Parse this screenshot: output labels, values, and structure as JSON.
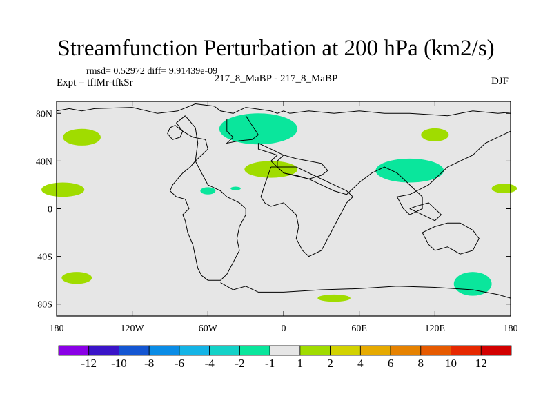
{
  "figure": {
    "title": "Streamfunction Perturbation at 200 hPa (km2/s)",
    "stats": "rmsd= 0.52972  diff= 9.91439e-09",
    "left_label": "Expt = tflMr-tfkSr",
    "center_label": "217_8_MaBP - 217_8_MaBP",
    "right_label": "DJF"
  },
  "chart_data": {
    "type": "heatmap",
    "title": "Streamfunction Perturbation at 200 hPa (km2/s)",
    "projection": "cylindrical equidistant",
    "xlim": [
      -180,
      180
    ],
    "ylim": [
      -90,
      90
    ],
    "x_ticks": [
      {
        "value": -180,
        "label": "180"
      },
      {
        "value": -120,
        "label": "120W"
      },
      {
        "value": -60,
        "label": "60W"
      },
      {
        "value": 0,
        "label": "0"
      },
      {
        "value": 60,
        "label": "60E"
      },
      {
        "value": 120,
        "label": "120E"
      },
      {
        "value": 180,
        "label": "180"
      }
    ],
    "y_ticks": [
      {
        "value": 80,
        "label": "80N"
      },
      {
        "value": 40,
        "label": "40N"
      },
      {
        "value": 0,
        "label": "0"
      },
      {
        "value": -40,
        "label": "40S"
      },
      {
        "value": -80,
        "label": "80S"
      }
    ],
    "background_color": "#e6e6e6",
    "colorbar": {
      "labels": [
        "-12",
        "-10",
        "-8",
        "-6",
        "-4",
        "-2",
        "-1",
        "1",
        "2",
        "4",
        "6",
        "8",
        "10",
        "12"
      ],
      "colors": [
        "#8a00e6",
        "#3a14c8",
        "#1456d2",
        "#0a8ce6",
        "#14b4e6",
        "#14d2c8",
        "#0ae69c",
        "#e6e6e6",
        "#a0dc00",
        "#d2d200",
        "#e6aa00",
        "#e68200",
        "#e65a00",
        "#e62800",
        "#d20000"
      ]
    },
    "anomalies": [
      {
        "lon": -20,
        "lat": 67,
        "rlon": 31,
        "rlat": 13,
        "class": "-1..-2"
      },
      {
        "lon": 100,
        "lat": 32,
        "rlon": 27,
        "rlat": 10,
        "class": "-1..-2"
      },
      {
        "lon": 150,
        "lat": -63,
        "rlon": 15,
        "rlat": 10,
        "class": "-1..-2"
      },
      {
        "lon": -60,
        "lat": 15,
        "rlon": 6,
        "rlat": 3,
        "class": "-1..-2"
      },
      {
        "lon": -38,
        "lat": 17,
        "rlon": 4,
        "rlat": 1.5,
        "class": "-1..-2"
      },
      {
        "lon": -160,
        "lat": 60,
        "rlon": 15,
        "rlat": 7,
        "class": "1..2"
      },
      {
        "lon": 120,
        "lat": 62,
        "rlon": 11,
        "rlat": 5.5,
        "class": "1..2"
      },
      {
        "lon": -10,
        "lat": 33,
        "rlon": 21,
        "rlat": 7,
        "class": "1..2"
      },
      {
        "lon": -175,
        "lat": 16,
        "rlon": 17,
        "rlat": 6,
        "class": "1..2"
      },
      {
        "lon": 175,
        "lat": 17,
        "rlon": 10,
        "rlat": 4,
        "class": "1..2"
      },
      {
        "lon": -164,
        "lat": -58,
        "rlon": 12,
        "rlat": 5,
        "class": "1..2"
      },
      {
        "lon": 40,
        "lat": -75,
        "rlon": 13,
        "rlat": 3,
        "class": "1..2"
      }
    ],
    "coastlines": [
      [
        [
          -180,
          82
        ],
        [
          -170,
          84
        ],
        [
          -160,
          82
        ],
        [
          -150,
          84
        ],
        [
          -120,
          85
        ],
        [
          -100,
          80
        ],
        [
          -84,
          82
        ],
        [
          -70,
          88
        ],
        [
          -55,
          86
        ],
        [
          -50,
          82
        ],
        [
          -40,
          80
        ],
        [
          -30,
          85
        ],
        [
          -10,
          82
        ],
        [
          -5,
          80
        ],
        [
          0,
          82
        ],
        [
          5,
          80
        ],
        [
          20,
          82
        ],
        [
          40,
          80
        ],
        [
          60,
          82
        ],
        [
          80,
          80
        ],
        [
          100,
          80
        ],
        [
          130,
          78
        ],
        [
          150,
          82
        ],
        [
          170,
          80
        ],
        [
          180,
          81
        ]
      ],
      [
        [
          -90,
          68
        ],
        [
          -92,
          63
        ],
        [
          -88,
          58
        ],
        [
          -82,
          60
        ],
        [
          -80,
          65
        ],
        [
          -86,
          70
        ],
        [
          -90,
          68
        ]
      ],
      [
        [
          -78,
          78
        ],
        [
          -85,
          72
        ],
        [
          -80,
          65
        ],
        [
          -72,
          60
        ],
        [
          -62,
          58
        ],
        [
          -60,
          50
        ],
        [
          -65,
          45
        ],
        [
          -70,
          40
        ],
        [
          -74,
          35
        ],
        [
          -80,
          30
        ],
        [
          -84,
          25
        ],
        [
          -88,
          20
        ],
        [
          -90,
          15
        ],
        [
          -85,
          10
        ],
        [
          -78,
          8
        ],
        [
          -75,
          0
        ],
        [
          -80,
          -5
        ],
        [
          -78,
          -10
        ],
        [
          -76,
          -20
        ],
        [
          -72,
          -30
        ],
        [
          -70,
          -40
        ],
        [
          -68,
          -50
        ],
        [
          -65,
          -56
        ],
        [
          -60,
          -60
        ],
        [
          -50,
          -60
        ],
        [
          -45,
          -55
        ],
        [
          -40,
          -45
        ],
        [
          -35,
          -35
        ],
        [
          -37,
          -25
        ],
        [
          -35,
          -15
        ],
        [
          -30,
          -5
        ],
        [
          -30,
          0
        ],
        [
          -35,
          5
        ],
        [
          -45,
          10
        ],
        [
          -50,
          15
        ],
        [
          -60,
          20
        ],
        [
          -65,
          30
        ],
        [
          -70,
          40
        ],
        [
          -68,
          55
        ],
        [
          -70,
          68
        ],
        [
          -78,
          78
        ]
      ],
      [
        [
          -45,
          75
        ],
        [
          -45,
          65
        ],
        [
          -40,
          60
        ],
        [
          -45,
          55
        ],
        [
          -35,
          57
        ],
        [
          -25,
          58
        ],
        [
          -20,
          62
        ],
        [
          -25,
          70
        ],
        [
          -30,
          78
        ]
      ],
      [
        [
          -20,
          55
        ],
        [
          -10,
          50
        ],
        [
          0,
          45
        ],
        [
          10,
          42
        ],
        [
          20,
          40
        ],
        [
          30,
          38
        ],
        [
          35,
          32
        ],
        [
          30,
          28
        ],
        [
          20,
          25
        ],
        [
          0,
          30
        ],
        [
          -5,
          35
        ],
        [
          -10,
          40
        ],
        [
          -5,
          45
        ],
        [
          -20,
          50
        ],
        [
          -20,
          55
        ]
      ],
      [
        [
          0,
          45
        ],
        [
          -5,
          40
        ],
        [
          -5,
          35
        ],
        [
          0,
          30
        ],
        [
          10,
          28
        ],
        [
          20,
          25
        ],
        [
          30,
          20
        ],
        [
          40,
          15
        ],
        [
          50,
          12
        ],
        [
          60,
          22
        ],
        [
          70,
          30
        ],
        [
          80,
          35
        ],
        [
          90,
          30
        ],
        [
          100,
          20
        ],
        [
          110,
          10
        ],
        [
          110,
          0
        ],
        [
          100,
          -5
        ],
        [
          95,
          0
        ],
        [
          90,
          10
        ],
        [
          100,
          12
        ],
        [
          115,
          20
        ],
        [
          120,
          25
        ],
        [
          125,
          30
        ],
        [
          130,
          35
        ],
        [
          140,
          40
        ],
        [
          150,
          45
        ],
        [
          160,
          55
        ],
        [
          170,
          60
        ],
        [
          180,
          65
        ]
      ],
      [
        [
          100,
          0
        ],
        [
          110,
          -5
        ],
        [
          120,
          -10
        ],
        [
          125,
          -5
        ],
        [
          120,
          0
        ],
        [
          115,
          5
        ],
        [
          105,
          2
        ],
        [
          100,
          0
        ]
      ],
      [
        [
          -10,
          35
        ],
        [
          -15,
          20
        ],
        [
          -18,
          10
        ],
        [
          -15,
          5
        ],
        [
          -10,
          2
        ],
        [
          0,
          5
        ],
        [
          5,
          0
        ],
        [
          10,
          -5
        ],
        [
          12,
          -15
        ],
        [
          10,
          -25
        ],
        [
          15,
          -35
        ],
        [
          20,
          -40
        ],
        [
          30,
          -35
        ],
        [
          35,
          -25
        ],
        [
          40,
          -15
        ],
        [
          45,
          -5
        ],
        [
          50,
          5
        ],
        [
          55,
          10
        ],
        [
          50,
          15
        ],
        [
          40,
          20
        ],
        [
          30,
          25
        ],
        [
          20,
          30
        ],
        [
          10,
          35
        ],
        [
          0,
          35
        ],
        [
          -10,
          35
        ]
      ],
      [
        [
          110,
          -20
        ],
        [
          115,
          -30
        ],
        [
          120,
          -35
        ],
        [
          130,
          -32
        ],
        [
          140,
          -38
        ],
        [
          150,
          -35
        ],
        [
          155,
          -25
        ],
        [
          150,
          -18
        ],
        [
          140,
          -12
        ],
        [
          130,
          -12
        ],
        [
          120,
          -15
        ],
        [
          110,
          -20
        ]
      ],
      [
        [
          -30,
          -65
        ],
        [
          -20,
          -70
        ],
        [
          0,
          -70
        ],
        [
          30,
          -68
        ],
        [
          60,
          -67
        ],
        [
          90,
          -65
        ],
        [
          120,
          -66
        ],
        [
          150,
          -68
        ],
        [
          170,
          -72
        ],
        [
          180,
          -75
        ]
      ],
      [
        [
          -50,
          -62
        ],
        [
          -40,
          -68
        ],
        [
          -30,
          -65
        ]
      ]
    ]
  }
}
